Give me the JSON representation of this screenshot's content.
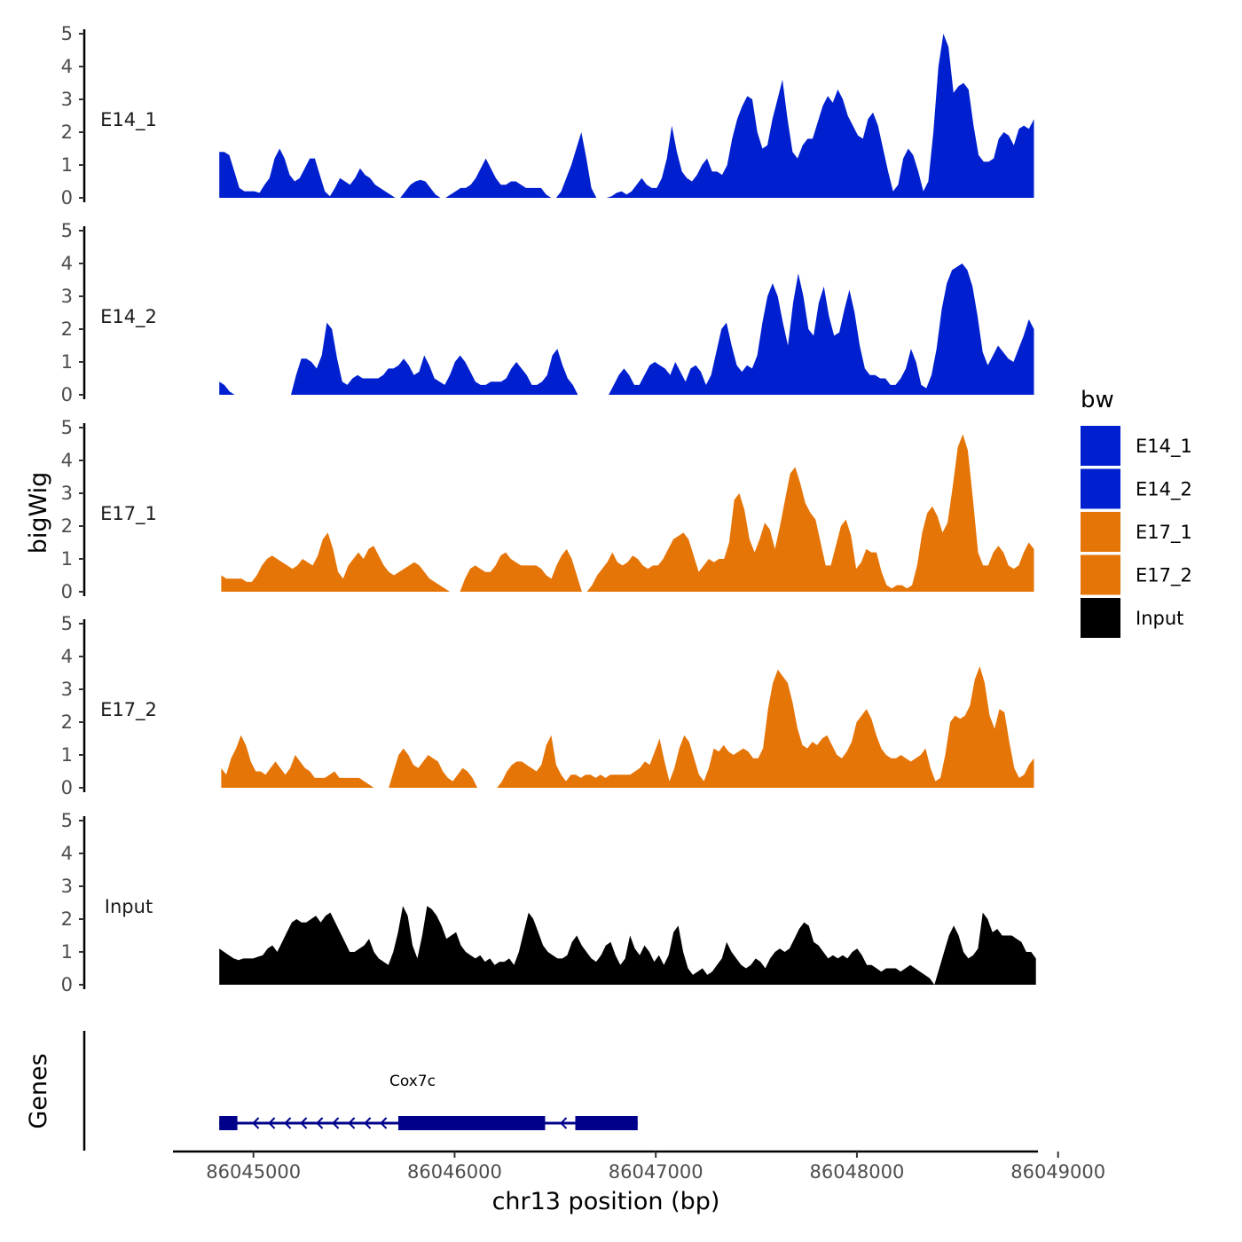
{
  "chart_data": {
    "type": "area",
    "ylabel": "bigWig",
    "xlabel": "chr13 position (bp)",
    "gene_track_label": "Genes",
    "xlim": [
      86044600,
      86048900
    ],
    "x_ticks": [
      86045000,
      86046000,
      86047000,
      86048000,
      86049000
    ],
    "x_tick_labels": [
      "86045000",
      "86046000",
      "86047000",
      "86048000",
      "86049000"
    ],
    "ylim": [
      0,
      5
    ],
    "y_ticks": [
      0,
      1,
      2,
      3,
      4,
      5
    ],
    "y_tick_labels": [
      "0",
      "1",
      "2",
      "3",
      "4",
      "5"
    ],
    "legend": {
      "title": "bw",
      "position": "right",
      "entries": [
        {
          "label": "E14_1",
          "color": "#0020d0"
        },
        {
          "label": "E14_2",
          "color": "#0020d0"
        },
        {
          "label": "E17_1",
          "color": "#e67508"
        },
        {
          "label": "E17_2",
          "color": "#e67508"
        },
        {
          "label": "Input",
          "color": "#000000"
        }
      ]
    },
    "series": [
      {
        "name": "E14_1",
        "color": "#0020d0",
        "x_start": 86044830,
        "x_end": 86048880,
        "values": [
          1.4,
          1.4,
          1.3,
          0.8,
          0.3,
          0.2,
          0.2,
          0.2,
          0.15,
          0.4,
          0.6,
          1.2,
          1.5,
          1.2,
          0.7,
          0.5,
          0.6,
          0.9,
          1.2,
          1.2,
          0.7,
          0.2,
          0.05,
          0.3,
          0.6,
          0.5,
          0.4,
          0.6,
          0.9,
          0.7,
          0.6,
          0.4,
          0.3,
          0.2,
          0.1,
          0,
          0,
          0.2,
          0.4,
          0.5,
          0.55,
          0.5,
          0.3,
          0.1,
          0,
          0,
          0.1,
          0.2,
          0.3,
          0.3,
          0.4,
          0.6,
          0.9,
          1.2,
          0.9,
          0.6,
          0.4,
          0.4,
          0.5,
          0.5,
          0.4,
          0.3,
          0.3,
          0.3,
          0.3,
          0.1,
          0,
          0,
          0.2,
          0.6,
          1.0,
          1.5,
          2.0,
          1.2,
          0.3,
          0,
          0,
          0,
          0.05,
          0.15,
          0.2,
          0.1,
          0.2,
          0.4,
          0.6,
          0.4,
          0.3,
          0.3,
          0.6,
          1.2,
          2.2,
          1.4,
          0.8,
          0.6,
          0.5,
          0.7,
          1.0,
          1.2,
          0.8,
          0.8,
          0.7,
          1.0,
          1.8,
          2.4,
          2.8,
          3.1,
          3.0,
          2.0,
          1.5,
          1.6,
          2.4,
          3.0,
          3.6,
          2.4,
          1.4,
          1.2,
          1.6,
          1.8,
          1.8,
          2.3,
          2.8,
          3.1,
          2.9,
          3.3,
          3.0,
          2.5,
          2.2,
          1.9,
          1.8,
          2.4,
          2.6,
          2.2,
          1.5,
          0.8,
          0.2,
          0.4,
          1.2,
          1.5,
          1.3,
          0.8,
          0.2,
          0.5,
          2.0,
          4.0,
          5.0,
          4.6,
          3.2,
          3.4,
          3.5,
          3.3,
          2.2,
          1.3,
          1.1,
          1.1,
          1.2,
          1.8,
          2.0,
          1.9,
          1.6,
          2.1,
          2.2,
          2.1,
          2.4
        ]
      },
      {
        "name": "E14_2",
        "color": "#0020d0",
        "x_start": 86044830,
        "x_end": 86048880,
        "values": [
          0.4,
          0.3,
          0.1,
          0,
          0,
          0,
          0,
          0,
          0,
          0,
          0,
          0,
          0,
          0,
          0,
          0.6,
          1.1,
          1.1,
          1.0,
          0.8,
          1.2,
          2.2,
          2.0,
          1.1,
          0.4,
          0.3,
          0.5,
          0.6,
          0.5,
          0.5,
          0.5,
          0.5,
          0.6,
          0.8,
          0.8,
          0.9,
          1.1,
          0.9,
          0.6,
          0.7,
          1.2,
          0.9,
          0.5,
          0.4,
          0.3,
          0.6,
          1.0,
          1.2,
          1.0,
          0.7,
          0.4,
          0.3,
          0.3,
          0.4,
          0.4,
          0.4,
          0.5,
          0.8,
          1.0,
          0.8,
          0.6,
          0.3,
          0.3,
          0.4,
          0.6,
          1.2,
          1.4,
          0.9,
          0.5,
          0.3,
          0,
          0,
          0,
          0,
          0,
          0,
          0,
          0.3,
          0.6,
          0.8,
          0.6,
          0.3,
          0.3,
          0.6,
          0.9,
          1.0,
          0.9,
          0.8,
          0.6,
          1.0,
          0.7,
          0.4,
          0.8,
          0.9,
          0.7,
          0.3,
          0.6,
          1.3,
          2.0,
          2.2,
          1.5,
          0.9,
          0.7,
          0.9,
          0.8,
          1.2,
          2.2,
          3.0,
          3.4,
          3.0,
          2.2,
          1.5,
          2.8,
          3.7,
          3.0,
          2.0,
          1.8,
          2.8,
          3.3,
          2.4,
          1.8,
          1.9,
          2.6,
          3.2,
          2.5,
          1.5,
          0.8,
          0.6,
          0.6,
          0.5,
          0.5,
          0.3,
          0.3,
          0.5,
          0.8,
          1.4,
          1.0,
          0.3,
          0.2,
          0.6,
          1.4,
          2.6,
          3.4,
          3.8,
          3.9,
          4.0,
          3.8,
          3.3,
          2.4,
          1.3,
          0.9,
          1.2,
          1.5,
          1.3,
          1.1,
          1.0,
          1.4,
          1.8,
          2.3,
          2.0
        ]
      },
      {
        "name": "E17_1",
        "color": "#e67508",
        "x_start": 86044840,
        "x_end": 86048880,
        "values": [
          0.5,
          0.4,
          0.4,
          0.4,
          0.4,
          0.3,
          0.3,
          0.5,
          0.8,
          1.0,
          1.1,
          1.0,
          0.9,
          0.8,
          0.7,
          0.8,
          1.0,
          0.9,
          0.8,
          1.1,
          1.6,
          1.8,
          1.3,
          0.6,
          0.4,
          0.8,
          1.0,
          1.2,
          1.0,
          1.3,
          1.4,
          1.1,
          0.8,
          0.6,
          0.5,
          0.6,
          0.7,
          0.8,
          0.9,
          0.8,
          0.6,
          0.4,
          0.3,
          0.2,
          0.1,
          0,
          0,
          0,
          0.4,
          0.7,
          0.8,
          0.7,
          0.6,
          0.6,
          0.8,
          1.1,
          1.2,
          1.0,
          0.9,
          0.8,
          0.8,
          0.8,
          0.8,
          0.7,
          0.5,
          0.4,
          0.8,
          1.1,
          1.3,
          1.0,
          0.5,
          0,
          0,
          0.2,
          0.5,
          0.7,
          0.9,
          1.2,
          0.9,
          0.8,
          0.9,
          1.1,
          1.0,
          0.8,
          0.7,
          0.8,
          0.8,
          1.0,
          1.3,
          1.6,
          1.7,
          1.8,
          1.6,
          1.1,
          0.6,
          0.8,
          1.0,
          0.9,
          1.0,
          1.0,
          1.5,
          2.8,
          3.0,
          2.5,
          1.6,
          1.2,
          1.6,
          2.1,
          1.9,
          1.3,
          2.0,
          2.8,
          3.6,
          3.8,
          3.3,
          2.7,
          2.4,
          2.2,
          1.5,
          0.8,
          0.8,
          1.4,
          2.0,
          2.2,
          1.7,
          0.7,
          0.9,
          1.3,
          1.2,
          1.2,
          0.6,
          0.2,
          0.1,
          0.2,
          0.2,
          0.1,
          0.2,
          0.8,
          1.8,
          2.4,
          2.6,
          2.3,
          1.8,
          2.1,
          3.2,
          4.4,
          4.8,
          4.3,
          2.8,
          1.2,
          0.8,
          0.8,
          1.2,
          1.4,
          1.2,
          0.8,
          0.7,
          0.8,
          1.2,
          1.5,
          1.3
        ]
      },
      {
        "name": "E17_2",
        "color": "#e67508",
        "x_start": 86044840,
        "x_end": 86048880,
        "values": [
          0.6,
          0.4,
          0.9,
          1.2,
          1.6,
          1.3,
          0.8,
          0.5,
          0.5,
          0.4,
          0.6,
          0.8,
          0.6,
          0.4,
          0.6,
          1.0,
          0.8,
          0.6,
          0.5,
          0.3,
          0.3,
          0.3,
          0.4,
          0.5,
          0.3,
          0.3,
          0.3,
          0.3,
          0.3,
          0.2,
          0.1,
          0,
          0,
          0,
          0,
          0.5,
          1.0,
          1.2,
          1.0,
          0.7,
          0.6,
          0.8,
          1.0,
          0.9,
          0.8,
          0.5,
          0.3,
          0.2,
          0.4,
          0.6,
          0.5,
          0.3,
          0,
          0,
          0,
          0,
          0,
          0.2,
          0.5,
          0.7,
          0.8,
          0.8,
          0.7,
          0.6,
          0.5,
          0.7,
          1.3,
          1.6,
          0.7,
          0.4,
          0.2,
          0.4,
          0.4,
          0.3,
          0.4,
          0.4,
          0.3,
          0.4,
          0.3,
          0.4,
          0.4,
          0.4,
          0.4,
          0.4,
          0.5,
          0.6,
          0.8,
          0.7,
          1.1,
          1.5,
          0.8,
          0.2,
          0.6,
          1.2,
          1.6,
          1.4,
          0.9,
          0.4,
          0.2,
          0.6,
          1.2,
          1.1,
          1.3,
          1.1,
          1.0,
          1.1,
          1.2,
          1.1,
          0.9,
          0.9,
          1.2,
          2.4,
          3.2,
          3.6,
          3.4,
          3.2,
          2.6,
          1.8,
          1.3,
          1.2,
          1.4,
          1.3,
          1.5,
          1.6,
          1.3,
          1.0,
          0.9,
          1.1,
          1.4,
          2.0,
          2.2,
          2.4,
          2.1,
          1.6,
          1.2,
          1.0,
          0.9,
          0.9,
          1.0,
          0.9,
          0.8,
          0.9,
          1.0,
          1.2,
          0.6,
          0.2,
          0.3,
          1.0,
          2.0,
          2.2,
          2.1,
          2.2,
          2.5,
          3.3,
          3.7,
          3.2,
          2.2,
          1.8,
          2.4,
          2.3,
          1.4,
          0.6,
          0.3,
          0.4,
          0.7,
          0.9
        ]
      },
      {
        "name": "Input",
        "color": "#000000",
        "x_start": 86044830,
        "x_end": 86048890,
        "values": [
          1.1,
          1.0,
          0.9,
          0.8,
          0.75,
          0.8,
          0.8,
          0.8,
          0.85,
          0.9,
          1.1,
          1.2,
          1.0,
          1.3,
          1.6,
          1.9,
          2.0,
          1.9,
          1.9,
          2.0,
          2.1,
          1.9,
          2.1,
          2.2,
          1.9,
          1.6,
          1.3,
          1.0,
          1.0,
          1.1,
          1.2,
          1.4,
          1.0,
          0.8,
          0.7,
          0.6,
          1.0,
          1.6,
          2.4,
          2.1,
          1.2,
          0.8,
          1.5,
          2.4,
          2.3,
          2.1,
          1.8,
          1.4,
          1.5,
          1.6,
          1.2,
          1.0,
          0.9,
          0.8,
          0.9,
          0.7,
          0.8,
          0.6,
          0.7,
          0.7,
          0.8,
          0.6,
          1.0,
          1.6,
          2.2,
          2.0,
          1.6,
          1.2,
          1.0,
          0.9,
          0.8,
          0.8,
          0.9,
          1.3,
          1.5,
          1.2,
          1.0,
          0.8,
          0.7,
          0.9,
          1.2,
          1.3,
          0.9,
          0.6,
          0.8,
          1.5,
          1.1,
          0.9,
          1.2,
          1.0,
          0.7,
          0.9,
          0.6,
          0.9,
          1.6,
          1.8,
          1.0,
          0.5,
          0.3,
          0.4,
          0.5,
          0.3,
          0.4,
          0.6,
          0.8,
          1.3,
          1.0,
          0.8,
          0.6,
          0.5,
          0.6,
          0.8,
          0.7,
          0.5,
          0.8,
          1.0,
          1.1,
          1.0,
          1.1,
          1.4,
          1.7,
          1.9,
          1.8,
          1.3,
          1.2,
          1.0,
          0.8,
          0.9,
          0.8,
          0.9,
          0.8,
          1.0,
          1.1,
          0.9,
          0.6,
          0.6,
          0.5,
          0.4,
          0.5,
          0.5,
          0.5,
          0.4,
          0.5,
          0.6,
          0.5,
          0.4,
          0.3,
          0.2,
          0.0,
          0.5,
          1.0,
          1.5,
          1.8,
          1.5,
          1.0,
          0.8,
          0.9,
          1.1,
          2.2,
          2.0,
          1.6,
          1.7,
          1.5,
          1.5,
          1.5,
          1.4,
          1.3,
          1.0,
          1.0,
          0.8
        ]
      }
    ],
    "gene": {
      "name": "Cox7c",
      "strand": "-",
      "color": "#00008b",
      "tx_start": 86044830,
      "tx_end": 86046910,
      "exons": [
        {
          "start": 86044830,
          "end": 86044920
        },
        {
          "start": 86045720,
          "end": 86046450
        },
        {
          "start": 86046600,
          "end": 86046910
        }
      ]
    }
  }
}
